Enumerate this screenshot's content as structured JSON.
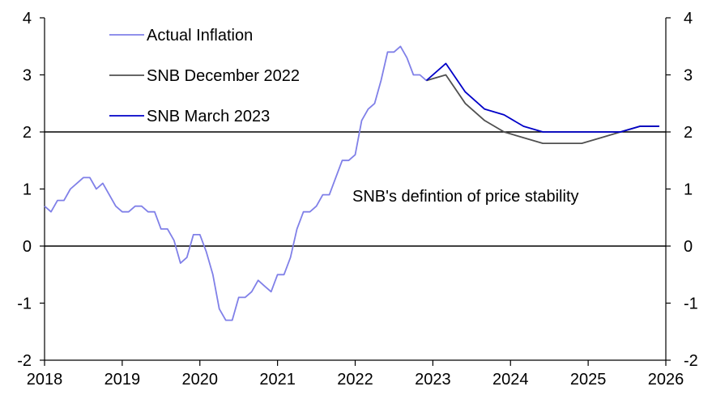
{
  "chart_data": {
    "type": "line",
    "title": "",
    "xlabel": "",
    "ylabel": "",
    "xlim": [
      2018,
      2026
    ],
    "ylim": [
      -2,
      4
    ],
    "x_ticks": [
      "2018",
      "2019",
      "2020",
      "2021",
      "2022",
      "2023",
      "2024",
      "2025",
      "2026"
    ],
    "y_ticks_left": [
      "4",
      "3",
      "2",
      "1",
      "0",
      "-1",
      "-2"
    ],
    "y_ticks_right": [
      "4",
      "3",
      "2",
      "1",
      "0",
      "-1",
      "-2"
    ],
    "reference_lines": [
      0,
      2
    ],
    "annotation": "SNB's defintion of price stability",
    "legend": [
      "Actual Inflation",
      "SNB December 2022",
      "SNB March 2023"
    ],
    "series": [
      {
        "name": "Actual Inflation",
        "color": "#8080e8",
        "x": [
          2018.0,
          2018.083,
          2018.167,
          2018.25,
          2018.333,
          2018.417,
          2018.5,
          2018.583,
          2018.667,
          2018.75,
          2018.833,
          2018.917,
          2019.0,
          2019.083,
          2019.167,
          2019.25,
          2019.333,
          2019.417,
          2019.5,
          2019.583,
          2019.667,
          2019.75,
          2019.833,
          2019.917,
          2020.0,
          2020.083,
          2020.167,
          2020.25,
          2020.333,
          2020.417,
          2020.5,
          2020.583,
          2020.667,
          2020.75,
          2020.833,
          2020.917,
          2021.0,
          2021.083,
          2021.167,
          2021.25,
          2021.333,
          2021.417,
          2021.5,
          2021.583,
          2021.667,
          2021.75,
          2021.833,
          2021.917,
          2022.0,
          2022.083,
          2022.167,
          2022.25,
          2022.333,
          2022.417,
          2022.5,
          2022.583,
          2022.667,
          2022.75,
          2022.833,
          2022.917
        ],
        "values": [
          0.7,
          0.6,
          0.8,
          0.8,
          1.0,
          1.1,
          1.2,
          1.2,
          1.0,
          1.1,
          0.9,
          0.7,
          0.6,
          0.6,
          0.7,
          0.7,
          0.6,
          0.6,
          0.3,
          0.3,
          0.1,
          -0.3,
          -0.2,
          0.2,
          0.2,
          -0.1,
          -0.5,
          -1.1,
          -1.3,
          -1.3,
          -0.9,
          -0.9,
          -0.8,
          -0.6,
          -0.7,
          -0.8,
          -0.5,
          -0.5,
          -0.2,
          0.3,
          0.6,
          0.6,
          0.7,
          0.9,
          0.9,
          1.2,
          1.5,
          1.5,
          1.6,
          2.2,
          2.4,
          2.5,
          2.9,
          3.4,
          3.4,
          3.5,
          3.3,
          3.0,
          3.0,
          2.9
        ]
      },
      {
        "name": "SNB December 2022",
        "color": "#505050",
        "x": [
          2022.917,
          2023.167,
          2023.417,
          2023.667,
          2023.917,
          2024.167,
          2024.417,
          2024.667,
          2024.917,
          2025.167,
          2025.417,
          2025.667,
          2025.917
        ],
        "values": [
          2.9,
          3.0,
          2.5,
          2.2,
          2.0,
          1.9,
          1.8,
          1.8,
          1.8,
          1.9,
          2.0,
          2.1,
          2.1
        ]
      },
      {
        "name": "SNB March 2023",
        "color": "#0000c8",
        "x": [
          2022.917,
          2023.167,
          2023.417,
          2023.667,
          2023.917,
          2024.167,
          2024.417,
          2024.667,
          2024.917,
          2025.167,
          2025.417,
          2025.667,
          2025.917
        ],
        "values": [
          2.9,
          3.2,
          2.7,
          2.4,
          2.3,
          2.1,
          2.0,
          2.0,
          2.0,
          2.0,
          2.0,
          2.1,
          2.1
        ]
      }
    ]
  }
}
